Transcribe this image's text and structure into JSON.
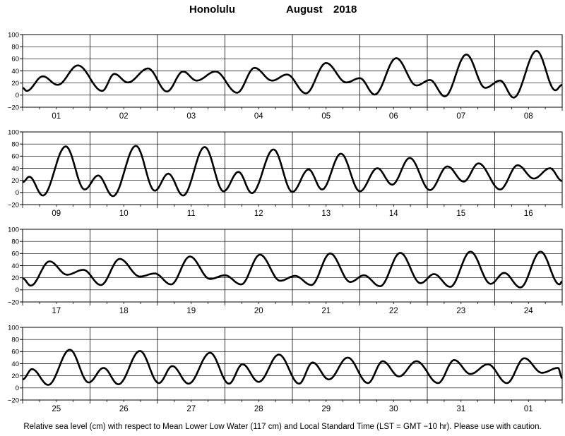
{
  "header": {
    "station": "Honolulu",
    "month": "August",
    "year": "2018"
  },
  "caption": "Relative sea level (cm) with respect to Mean Lower Low Water (117 cm) and Local Standard Time (LST = GMT −10 hr). Please use with caution.",
  "colors": {
    "curve": "#000000",
    "grid": "#000000",
    "background": "#ffffff"
  },
  "chart_data": [
    {
      "type": "line",
      "x_unit": "days of August 2018 (LST)",
      "x_range_days": [
        1,
        9
      ],
      "ylim": [
        -20,
        100
      ],
      "yticks": [
        -20,
        0,
        20,
        40,
        60,
        80,
        100
      ],
      "ytick_labels": [
        "−20",
        "0",
        "20",
        "40",
        "60",
        "80",
        "100"
      ],
      "day_labels": [
        "01",
        "02",
        "03",
        "04",
        "05",
        "06",
        "07",
        "08"
      ],
      "grid": "vertical lines at day boundaries",
      "series": [
        {
          "extrema": [
            {
              "d": 1.0,
              "v": 12
            },
            {
              "d": 1.06,
              "v": 7
            },
            {
              "d": 1.3,
              "v": 31
            },
            {
              "d": 1.52,
              "v": 17
            },
            {
              "d": 1.82,
              "v": 49
            },
            {
              "d": 2.18,
              "v": 7
            },
            {
              "d": 2.36,
              "v": 35
            },
            {
              "d": 2.56,
              "v": 21
            },
            {
              "d": 2.86,
              "v": 44
            },
            {
              "d": 3.14,
              "v": 6
            },
            {
              "d": 3.38,
              "v": 39
            },
            {
              "d": 3.58,
              "v": 24
            },
            {
              "d": 3.86,
              "v": 39
            },
            {
              "d": 4.18,
              "v": 4
            },
            {
              "d": 4.44,
              "v": 45
            },
            {
              "d": 4.7,
              "v": 24
            },
            {
              "d": 4.92,
              "v": 34
            },
            {
              "d": 5.2,
              "v": 3
            },
            {
              "d": 5.5,
              "v": 53
            },
            {
              "d": 5.8,
              "v": 21
            },
            {
              "d": 6.0,
              "v": 28
            },
            {
              "d": 6.22,
              "v": 1
            },
            {
              "d": 6.54,
              "v": 61
            },
            {
              "d": 6.84,
              "v": 16
            },
            {
              "d": 7.04,
              "v": 25
            },
            {
              "d": 7.26,
              "v": -2
            },
            {
              "d": 7.58,
              "v": 67
            },
            {
              "d": 7.86,
              "v": 12
            },
            {
              "d": 8.08,
              "v": 24
            },
            {
              "d": 8.28,
              "v": -4
            },
            {
              "d": 8.62,
              "v": 73
            },
            {
              "d": 8.9,
              "v": 8
            },
            {
              "d": 9.0,
              "v": 17
            }
          ]
        }
      ]
    },
    {
      "type": "line",
      "x_unit": "days of August 2018 (LST)",
      "x_range_days": [
        9,
        17
      ],
      "ylim": [
        -20,
        100
      ],
      "yticks": [
        -20,
        0,
        20,
        40,
        60,
        80,
        100
      ],
      "ytick_labels": [
        "−20",
        "0",
        "20",
        "40",
        "60",
        "80",
        "100"
      ],
      "day_labels": [
        "09",
        "10",
        "11",
        "12",
        "13",
        "14",
        "15",
        "16"
      ],
      "grid": "vertical lines at day boundaries",
      "series": [
        {
          "extrema": [
            {
              "d": 9.0,
              "v": 17
            },
            {
              "d": 9.1,
              "v": 26
            },
            {
              "d": 9.3,
              "v": -5
            },
            {
              "d": 9.64,
              "v": 76
            },
            {
              "d": 9.92,
              "v": 5
            },
            {
              "d": 10.12,
              "v": 28
            },
            {
              "d": 10.34,
              "v": -6
            },
            {
              "d": 10.68,
              "v": 77
            },
            {
              "d": 10.96,
              "v": 3
            },
            {
              "d": 11.16,
              "v": 31
            },
            {
              "d": 11.38,
              "v": -5
            },
            {
              "d": 11.7,
              "v": 75
            },
            {
              "d": 11.98,
              "v": 2
            },
            {
              "d": 12.2,
              "v": 34
            },
            {
              "d": 12.4,
              "v": -1
            },
            {
              "d": 12.72,
              "v": 71
            },
            {
              "d": 13.0,
              "v": 1
            },
            {
              "d": 13.24,
              "v": 38
            },
            {
              "d": 13.44,
              "v": 5
            },
            {
              "d": 13.72,
              "v": 64
            },
            {
              "d": 14.0,
              "v": 2
            },
            {
              "d": 14.26,
              "v": 40
            },
            {
              "d": 14.48,
              "v": 13
            },
            {
              "d": 14.74,
              "v": 57
            },
            {
              "d": 15.04,
              "v": 4
            },
            {
              "d": 15.3,
              "v": 43
            },
            {
              "d": 15.54,
              "v": 18
            },
            {
              "d": 15.76,
              "v": 48
            },
            {
              "d": 16.08,
              "v": 5
            },
            {
              "d": 16.34,
              "v": 45
            },
            {
              "d": 16.58,
              "v": 23
            },
            {
              "d": 16.82,
              "v": 40
            },
            {
              "d": 17.0,
              "v": 19
            }
          ]
        }
      ]
    },
    {
      "type": "line",
      "x_unit": "days of August 2018 (LST)",
      "x_range_days": [
        17,
        25
      ],
      "ylim": [
        -20,
        100
      ],
      "yticks": [
        -20,
        0,
        20,
        40,
        60,
        80,
        100
      ],
      "ytick_labels": [
        "−20",
        "0",
        "20",
        "40",
        "60",
        "80",
        "100"
      ],
      "day_labels": [
        "17",
        "18",
        "19",
        "20",
        "21",
        "22",
        "23",
        "24"
      ],
      "grid": "vertical lines at day boundaries",
      "series": [
        {
          "extrema": [
            {
              "d": 17.0,
              "v": 19
            },
            {
              "d": 17.12,
              "v": 7
            },
            {
              "d": 17.4,
              "v": 47
            },
            {
              "d": 17.66,
              "v": 25
            },
            {
              "d": 17.9,
              "v": 33
            },
            {
              "d": 18.16,
              "v": 8
            },
            {
              "d": 18.44,
              "v": 51
            },
            {
              "d": 18.74,
              "v": 22
            },
            {
              "d": 18.96,
              "v": 27
            },
            {
              "d": 19.2,
              "v": 9
            },
            {
              "d": 19.48,
              "v": 55
            },
            {
              "d": 19.78,
              "v": 18
            },
            {
              "d": 20.0,
              "v": 24
            },
            {
              "d": 20.24,
              "v": 9
            },
            {
              "d": 20.52,
              "v": 58
            },
            {
              "d": 20.82,
              "v": 15
            },
            {
              "d": 21.04,
              "v": 23
            },
            {
              "d": 21.28,
              "v": 8
            },
            {
              "d": 21.56,
              "v": 60
            },
            {
              "d": 21.86,
              "v": 13
            },
            {
              "d": 22.06,
              "v": 24
            },
            {
              "d": 22.3,
              "v": 6
            },
            {
              "d": 22.6,
              "v": 61
            },
            {
              "d": 22.9,
              "v": 11
            },
            {
              "d": 23.1,
              "v": 26
            },
            {
              "d": 23.34,
              "v": 5
            },
            {
              "d": 23.64,
              "v": 63
            },
            {
              "d": 23.94,
              "v": 10
            },
            {
              "d": 24.14,
              "v": 28
            },
            {
              "d": 24.38,
              "v": 4
            },
            {
              "d": 24.68,
              "v": 63
            },
            {
              "d": 24.96,
              "v": 9
            },
            {
              "d": 25.0,
              "v": 14
            }
          ]
        }
      ]
    },
    {
      "type": "line",
      "x_unit": "days of Aug 25 – Sep 1, 2018 (LST)",
      "x_range_days": [
        25,
        33
      ],
      "ylim": [
        -20,
        100
      ],
      "yticks": [
        -20,
        0,
        20,
        40,
        60,
        80,
        100
      ],
      "ytick_labels": [
        "−20",
        "0",
        "20",
        "40",
        "60",
        "80",
        "100"
      ],
      "day_labels": [
        "25",
        "26",
        "27",
        "28",
        "29",
        "30",
        "31",
        "01"
      ],
      "grid": "vertical lines at day boundaries",
      "series": [
        {
          "extrema": [
            {
              "d": 25.0,
              "v": 14
            },
            {
              "d": 25.14,
              "v": 31
            },
            {
              "d": 25.38,
              "v": 5
            },
            {
              "d": 25.7,
              "v": 63
            },
            {
              "d": 25.98,
              "v": 9
            },
            {
              "d": 26.2,
              "v": 33
            },
            {
              "d": 26.42,
              "v": 6
            },
            {
              "d": 26.74,
              "v": 61
            },
            {
              "d": 27.02,
              "v": 8
            },
            {
              "d": 27.22,
              "v": 36
            },
            {
              "d": 27.46,
              "v": 7
            },
            {
              "d": 27.78,
              "v": 58
            },
            {
              "d": 28.06,
              "v": 7
            },
            {
              "d": 28.26,
              "v": 39
            },
            {
              "d": 28.5,
              "v": 10
            },
            {
              "d": 28.8,
              "v": 55
            },
            {
              "d": 29.1,
              "v": 7
            },
            {
              "d": 29.3,
              "v": 42
            },
            {
              "d": 29.54,
              "v": 14
            },
            {
              "d": 29.82,
              "v": 50
            },
            {
              "d": 30.12,
              "v": 8
            },
            {
              "d": 30.34,
              "v": 44
            },
            {
              "d": 30.58,
              "v": 19
            },
            {
              "d": 30.84,
              "v": 44
            },
            {
              "d": 31.16,
              "v": 8
            },
            {
              "d": 31.4,
              "v": 46
            },
            {
              "d": 31.64,
              "v": 23
            },
            {
              "d": 31.9,
              "v": 39
            },
            {
              "d": 32.18,
              "v": 8
            },
            {
              "d": 32.44,
              "v": 49
            },
            {
              "d": 32.7,
              "v": 25
            },
            {
              "d": 32.94,
              "v": 33
            },
            {
              "d": 33.0,
              "v": 16
            }
          ]
        }
      ]
    }
  ]
}
